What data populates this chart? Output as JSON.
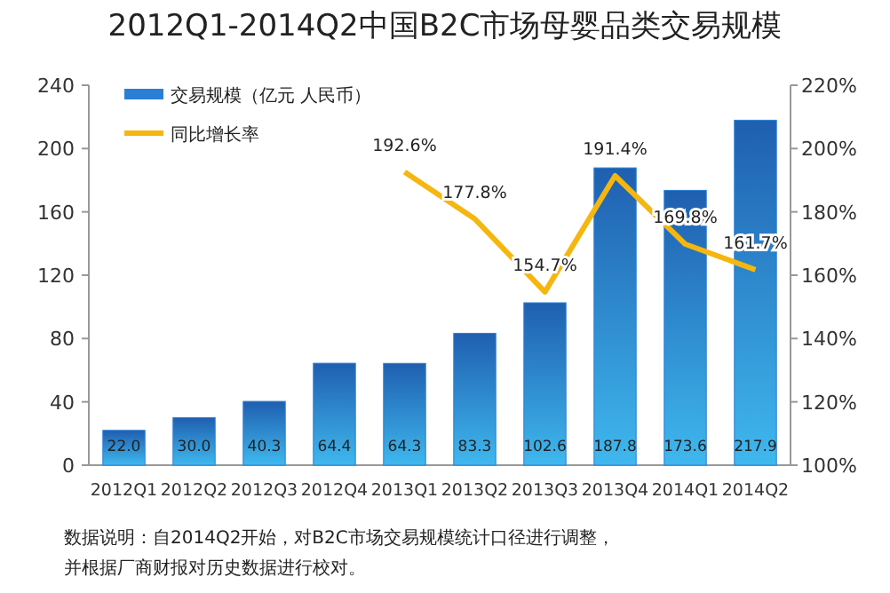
{
  "chart_data": {
    "type": "bar",
    "title": "2012Q1-2014Q2中国B2C市场母婴品类交易规模",
    "categories": [
      "2012Q1",
      "2012Q2",
      "2012Q3",
      "2012Q4",
      "2013Q1",
      "2013Q2",
      "2013Q3",
      "2013Q4",
      "2014Q1",
      "2014Q2"
    ],
    "series": [
      {
        "name": "交易规模（亿元 人民币）",
        "color": "#2a7fd4",
        "values": [
          22.0,
          30.0,
          40.3,
          64.4,
          64.3,
          83.3,
          102.6,
          187.8,
          173.6,
          217.9
        ],
        "value_labels": [
          "22.0",
          "30.0",
          "40.3",
          "64.4",
          "64.3",
          "83.3",
          "102.6",
          "187.8",
          "173.6",
          "217.9"
        ]
      },
      {
        "name": "同比增长率",
        "type": "line",
        "axis": "y2",
        "color": "#f5b60f",
        "values": [
          null,
          null,
          null,
          null,
          192.6,
          177.8,
          154.7,
          191.4,
          169.8,
          161.7
        ],
        "value_labels": [
          null,
          null,
          null,
          null,
          "192.6%",
          "177.8%",
          "154.7%",
          "191.4%",
          "169.8%",
          "161.7%"
        ]
      }
    ],
    "ylim": [
      0,
      240
    ],
    "yticks": [
      0,
      40,
      80,
      120,
      160,
      200,
      240
    ],
    "y2lim": [
      100,
      220
    ],
    "y2ticks": [
      {
        "value": 100,
        "label": "100%"
      },
      {
        "value": 120,
        "label": "120%"
      },
      {
        "value": 140,
        "label": "140%"
      },
      {
        "value": 160,
        "label": "160%"
      },
      {
        "value": 180,
        "label": "180%"
      },
      {
        "value": 200,
        "label": "200%"
      },
      {
        "value": 220,
        "label": "220%"
      }
    ],
    "legend": "top left",
    "grid": false,
    "annotations": [
      "数据说明：自2014Q2开始，对B2C市场交易规模统计口径进行调整，",
      "并根据厂商财报对历史数据进行校对。"
    ]
  }
}
